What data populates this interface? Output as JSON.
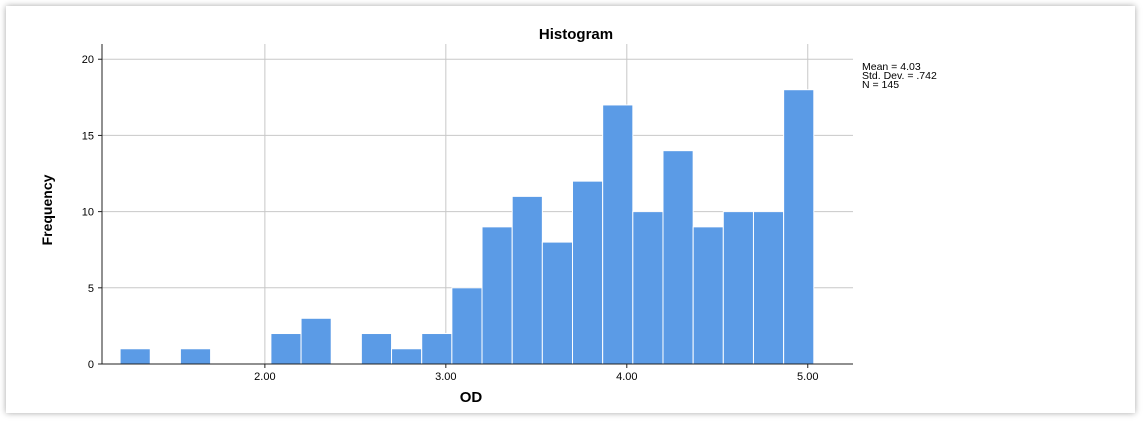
{
  "chart_data": {
    "type": "bar",
    "title": "Histogram",
    "xlabel": "OD",
    "ylabel": "Frequency",
    "xlim": [
      1.1,
      5.25
    ],
    "ylim": [
      0,
      21
    ],
    "x_ticks": [
      2,
      3,
      4,
      5
    ],
    "x_tick_labels": [
      "2.00",
      "3.00",
      "4.00",
      "5.00"
    ],
    "y_ticks": [
      0,
      5,
      10,
      15,
      20
    ],
    "y_tick_labels": [
      "0",
      "5",
      "10",
      "15",
      "20"
    ],
    "grid": true,
    "bin_width": 0.1667,
    "bins": [
      {
        "start": 1.2,
        "value": 1
      },
      {
        "start": 1.5333,
        "value": 1
      },
      {
        "start": 2.0333,
        "value": 2
      },
      {
        "start": 2.2,
        "value": 3
      },
      {
        "start": 2.5333,
        "value": 2
      },
      {
        "start": 2.7,
        "value": 1
      },
      {
        "start": 2.8667,
        "value": 2
      },
      {
        "start": 3.0333,
        "value": 5
      },
      {
        "start": 3.2,
        "value": 9
      },
      {
        "start": 3.3667,
        "value": 11
      },
      {
        "start": 3.5333,
        "value": 8
      },
      {
        "start": 3.7,
        "value": 12
      },
      {
        "start": 3.8667,
        "value": 17
      },
      {
        "start": 4.0333,
        "value": 10
      },
      {
        "start": 4.2,
        "value": 14
      },
      {
        "start": 4.3667,
        "value": 9
      },
      {
        "start": 4.5333,
        "value": 10
      },
      {
        "start": 4.7,
        "value": 10
      },
      {
        "start": 4.8667,
        "value": 18
      }
    ],
    "stats": {
      "mean": "Mean = 4.03",
      "std_dev": "Std. Dev. = .742",
      "n": "N = 145"
    },
    "bar_color": "#5b9be6",
    "legend_position": "top-right"
  }
}
